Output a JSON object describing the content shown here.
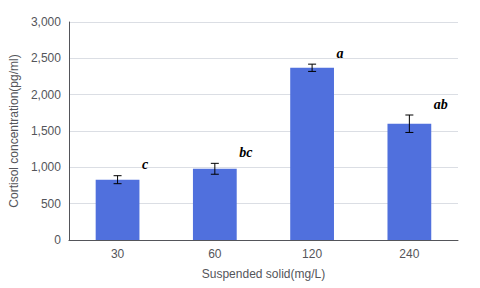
{
  "chart_data": {
    "type": "bar",
    "categories": [
      "30",
      "60",
      "120",
      "240"
    ],
    "values": [
      830,
      980,
      2370,
      1600
    ],
    "errors": [
      55,
      75,
      50,
      120
    ],
    "annotations": [
      "c",
      "bc",
      "a",
      "ab"
    ],
    "xlabel": "Suspended solid(mg/L)",
    "ylabel": "Cortisol concentration(pg/ml)",
    "ylim": [
      0,
      3000
    ],
    "yticks": [
      0,
      500,
      {
        "value": 1000,
        "label": "1,000"
      },
      {
        "value": 1500,
        "label": "1,500"
      },
      {
        "value": 2000,
        "label": "2,000"
      },
      {
        "value": 2500,
        "label": "2,500"
      },
      {
        "value": 3000,
        "label": "3,000"
      }
    ],
    "grid": true
  }
}
